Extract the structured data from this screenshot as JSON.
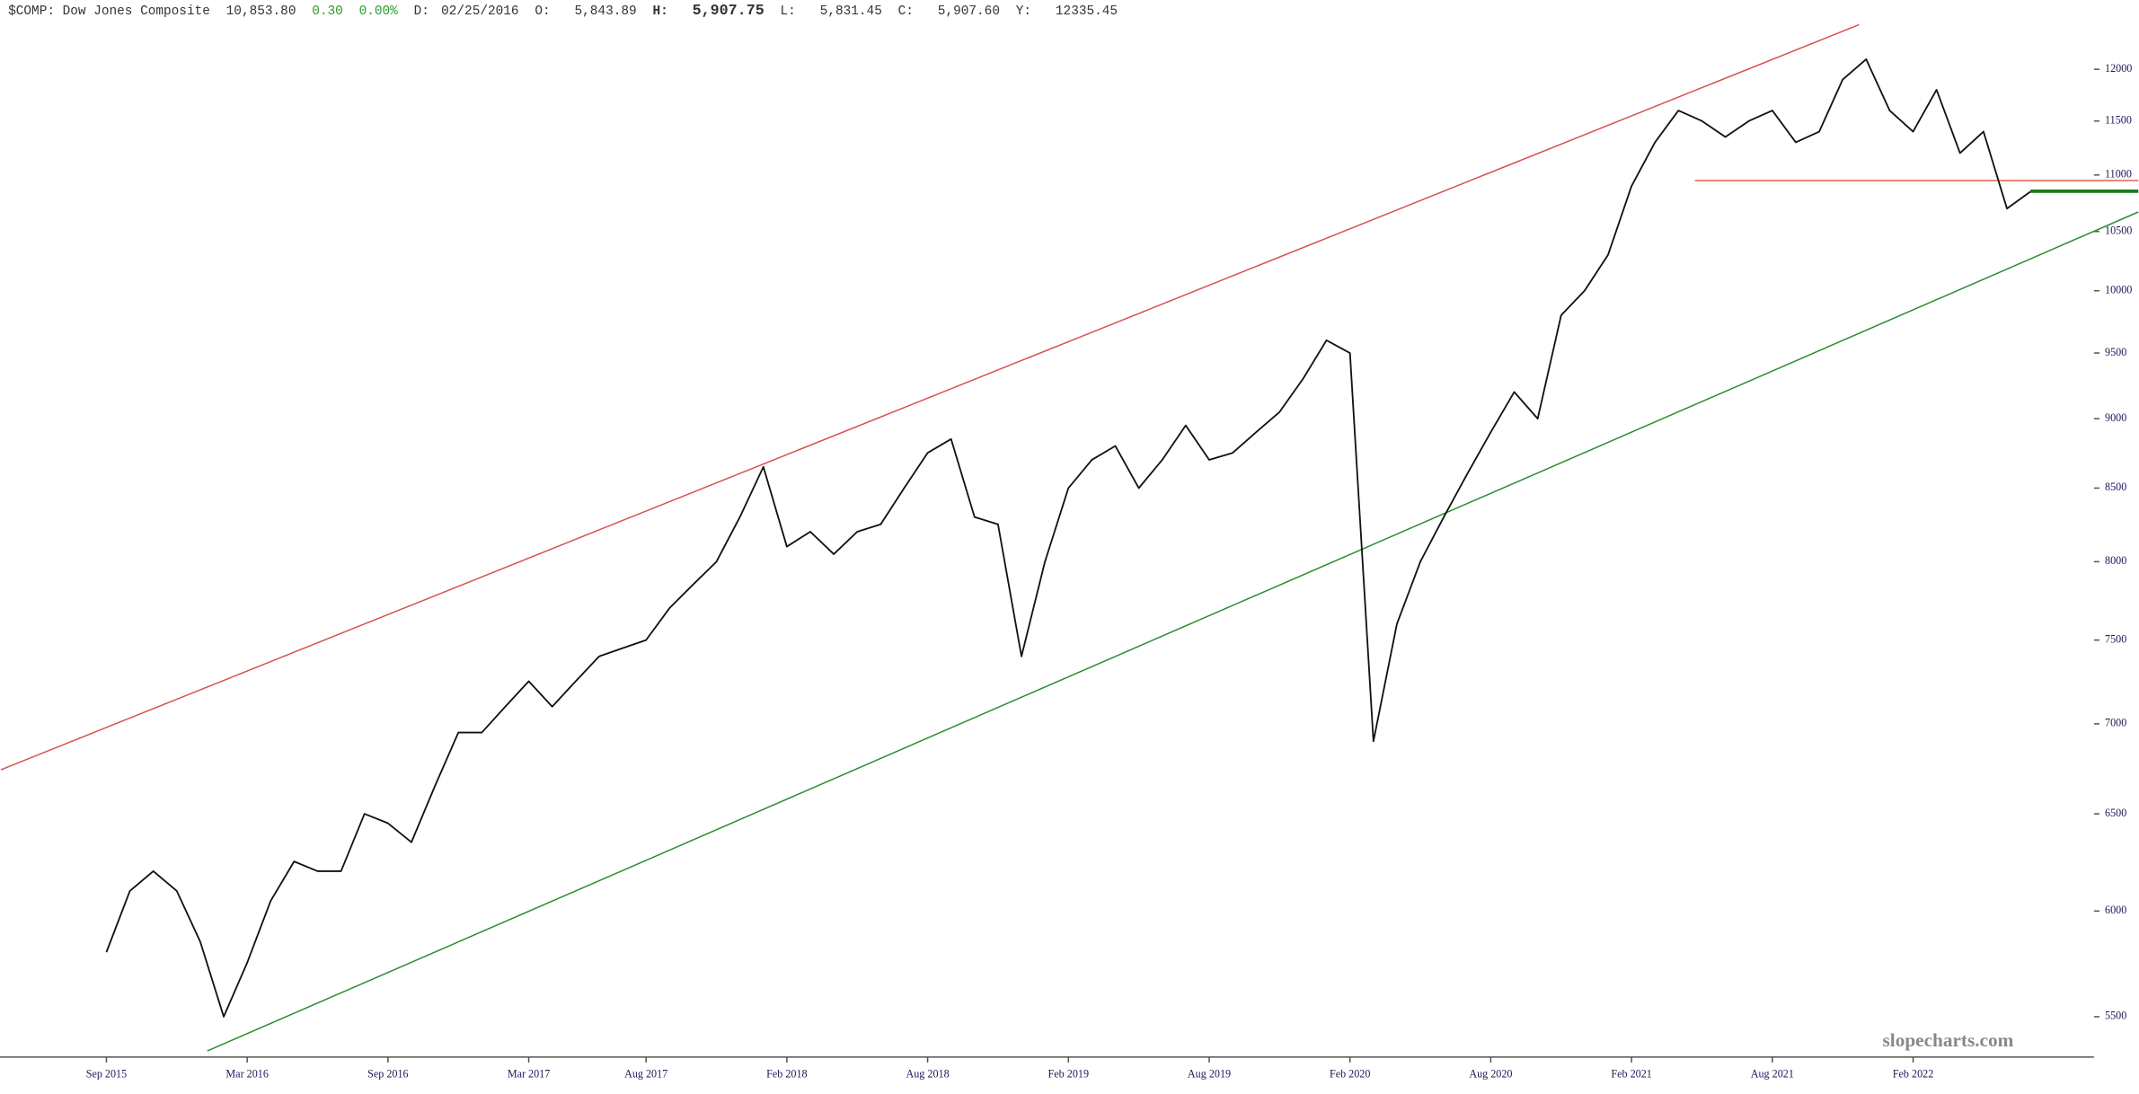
{
  "chart_data": {
    "type": "line",
    "header": {
      "symbol": "$COMP: Dow Jones Composite",
      "last": "10,853.80",
      "change": "0.30",
      "change_pct": "0.00%",
      "date_label": "D:",
      "date": "02/25/2016",
      "open_label": "O:",
      "open": "5,843.89",
      "high_label": "H:",
      "high": "5,907.75",
      "low_label": "L:",
      "low": "5,831.45",
      "close_label": "C:",
      "close": "5,907.60",
      "y_label": "Y:",
      "y": "12335.45"
    },
    "watermark": "slopecharts.com",
    "categories": [
      "Sep 2015",
      null,
      null,
      null,
      null,
      null,
      "Mar 2016",
      null,
      null,
      null,
      null,
      null,
      "Sep 2016",
      null,
      null,
      null,
      null,
      null,
      "Mar 2017",
      null,
      null,
      null,
      null,
      "Aug 2017",
      null,
      null,
      null,
      null,
      null,
      "Feb 2018",
      null,
      null,
      null,
      null,
      null,
      "Aug 2018",
      null,
      null,
      null,
      null,
      null,
      "Feb 2019",
      null,
      null,
      null,
      null,
      null,
      "Aug 2019",
      null,
      null,
      null,
      null,
      null,
      "Feb 2020",
      null,
      null,
      null,
      null,
      null,
      "Aug 2020",
      null,
      null,
      null,
      null,
      null,
      "Feb 2021",
      null,
      null,
      null,
      null,
      null,
      "Aug 2021",
      null,
      null,
      null,
      null,
      null,
      "Feb 2022",
      null,
      null,
      null,
      null,
      null
    ],
    "series": [
      {
        "name": "$COMP",
        "color": "#111111",
        "values": [
          5800,
          6100,
          6200,
          6100,
          5850,
          5500,
          5750,
          6050,
          6250,
          6200,
          6200,
          6500,
          6450,
          6350,
          6650,
          6950,
          6950,
          7100,
          7250,
          7100,
          7250,
          7400,
          7450,
          7500,
          7700,
          7850,
          8000,
          8300,
          8650,
          8100,
          8200,
          8050,
          8200,
          8250,
          8500,
          8750,
          8850,
          8300,
          8250,
          7400,
          8000,
          8500,
          8700,
          8800,
          8500,
          8700,
          8950,
          8700,
          8750,
          8900,
          9050,
          9300,
          9600,
          9500,
          6900,
          7600,
          8000,
          8300,
          8600,
          8900,
          9200,
          9000,
          9800,
          10000,
          10300,
          10900,
          11300,
          11600,
          11500,
          11350,
          11500,
          11600,
          11300,
          11400,
          11900,
          12100,
          11600,
          11400,
          11800,
          11200,
          11400,
          10700,
          10850
        ]
      }
    ],
    "trendlines": [
      {
        "color": "#d9534f",
        "start": [
          -4.5,
          6740
        ],
        "end": [
          74.7,
          12450
        ]
      },
      {
        "color": "#2e8b2e",
        "start": [
          4.3,
          5347
        ],
        "end": [
          86.6,
          10670
        ]
      },
      {
        "color": "#e06050",
        "start": [
          67.7,
          10950
        ],
        "end": [
          86.6,
          10950
        ]
      },
      {
        "color": "#1a7a1a",
        "start": [
          82,
          10853.8
        ],
        "end": [
          86.6,
          10853.8
        ],
        "width": 2.5
      }
    ],
    "log_scale": true,
    "ylim": [
      5320,
      12450
    ],
    "yticks": [
      5500,
      6000,
      6500,
      7000,
      7500,
      8000,
      8500,
      9000,
      9500,
      10000,
      10500,
      11000,
      11500,
      12000
    ]
  }
}
